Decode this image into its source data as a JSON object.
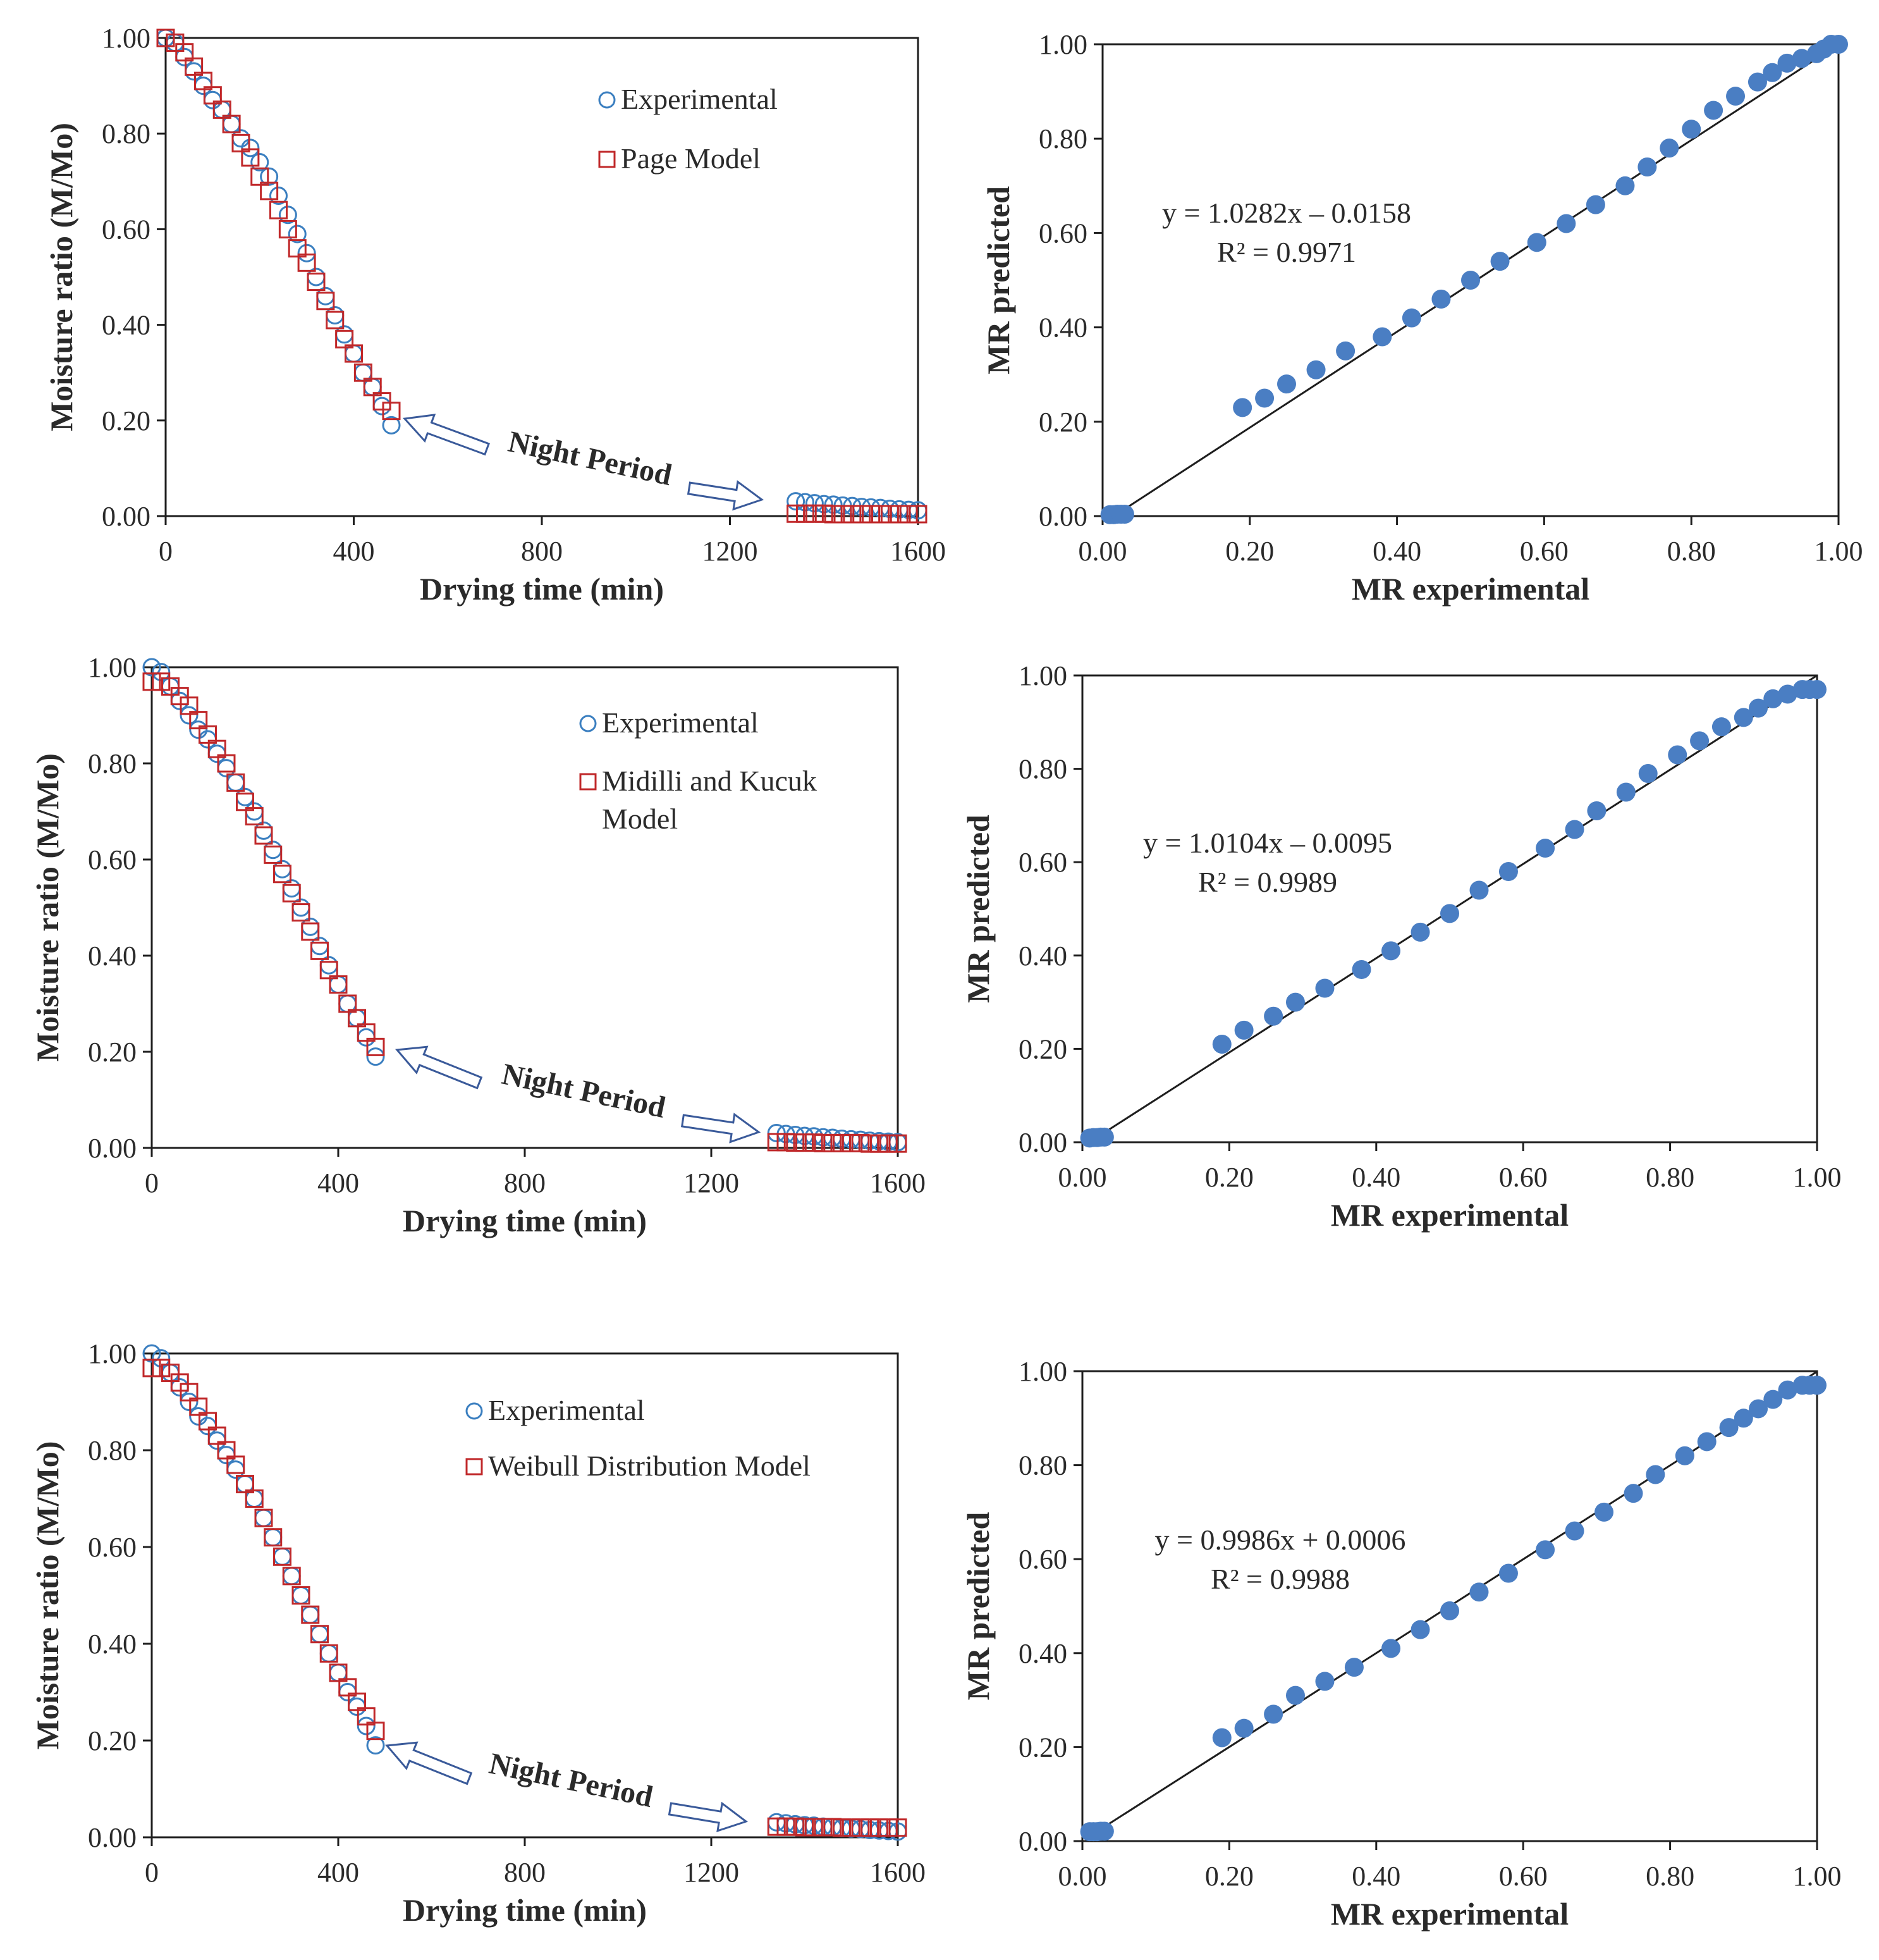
{
  "figure": {
    "night_arrow_fill": "#ffffff",
    "night_arrow_stroke": "#3a5a9a",
    "exp_color": "#3b7fc0",
    "model_color": "#c0282a",
    "scatter_color": "#4a7ec3",
    "axis_color": "#1e1e1e"
  },
  "chart_data": [
    {
      "id": "page-curve",
      "type": "scatter",
      "xlabel": "Drying time (min)",
      "ylabel": "Moisture ratio (M/Mo)",
      "xlim": [
        0,
        1600
      ],
      "ylim": [
        0,
        1.0
      ],
      "xticks": [
        "0",
        "400",
        "800",
        "1200",
        "1600"
      ],
      "yticks": [
        "0.00",
        "0.20",
        "0.40",
        "0.60",
        "0.80",
        "1.00"
      ],
      "annotation": "Night Period",
      "legend": [
        "Experimental",
        "Page Model"
      ],
      "series": [
        {
          "name": "Experimental",
          "marker": "circle-open",
          "x": [
            0,
            20,
            40,
            60,
            80,
            100,
            120,
            140,
            160,
            180,
            200,
            220,
            240,
            260,
            280,
            300,
            320,
            340,
            360,
            380,
            400,
            420,
            440,
            460,
            480,
            1340,
            1360,
            1380,
            1400,
            1420,
            1440,
            1460,
            1480,
            1500,
            1520,
            1540,
            1560,
            1580,
            1600
          ],
          "y": [
            1.0,
            0.99,
            0.96,
            0.93,
            0.9,
            0.87,
            0.85,
            0.82,
            0.79,
            0.77,
            0.74,
            0.71,
            0.67,
            0.63,
            0.59,
            0.55,
            0.5,
            0.46,
            0.42,
            0.38,
            0.34,
            0.3,
            0.27,
            0.23,
            0.19,
            0.031,
            0.029,
            0.027,
            0.025,
            0.024,
            0.022,
            0.021,
            0.019,
            0.018,
            0.017,
            0.015,
            0.014,
            0.013,
            0.012
          ]
        },
        {
          "name": "Page Model",
          "marker": "square-open",
          "x": [
            0,
            20,
            40,
            60,
            80,
            100,
            120,
            140,
            160,
            180,
            200,
            220,
            240,
            260,
            280,
            300,
            320,
            340,
            360,
            380,
            400,
            420,
            440,
            460,
            480,
            1340,
            1360,
            1380,
            1400,
            1420,
            1440,
            1460,
            1480,
            1500,
            1520,
            1540,
            1560,
            1580,
            1600
          ],
          "y": [
            1.0,
            0.99,
            0.97,
            0.94,
            0.91,
            0.88,
            0.85,
            0.82,
            0.78,
            0.75,
            0.71,
            0.68,
            0.64,
            0.6,
            0.56,
            0.53,
            0.49,
            0.45,
            0.41,
            0.37,
            0.34,
            0.3,
            0.27,
            0.24,
            0.22,
            0.005,
            0.005,
            0.005,
            0.005,
            0.004,
            0.004,
            0.004,
            0.004,
            0.004,
            0.004,
            0.004,
            0.004,
            0.004,
            0.004
          ]
        }
      ]
    },
    {
      "id": "page-fit",
      "type": "scatter",
      "xlabel": "MR experimental",
      "ylabel": "MR predicted",
      "xlim": [
        0,
        1.0
      ],
      "ylim": [
        0,
        1.0
      ],
      "xticks": [
        "0.00",
        "0.20",
        "0.40",
        "0.60",
        "0.80",
        "1.00"
      ],
      "yticks": [
        "0.00",
        "0.20",
        "0.40",
        "0.60",
        "0.80",
        "1.00"
      ],
      "equation": "y = 1.0282x – 0.0158",
      "r2": "R² = 0.9971",
      "trendline": {
        "slope": 1.0282,
        "intercept": -0.0158
      },
      "series": [
        {
          "name": "MR",
          "marker": "circle-filled",
          "x": [
            0.01,
            0.015,
            0.02,
            0.025,
            0.03,
            0.19,
            0.22,
            0.25,
            0.29,
            0.33,
            0.38,
            0.42,
            0.46,
            0.5,
            0.54,
            0.59,
            0.63,
            0.67,
            0.71,
            0.74,
            0.77,
            0.8,
            0.83,
            0.86,
            0.89,
            0.91,
            0.93,
            0.95,
            0.97,
            0.98,
            0.99,
            1.0
          ],
          "y": [
            0.003,
            0.003,
            0.004,
            0.004,
            0.004,
            0.23,
            0.25,
            0.28,
            0.31,
            0.35,
            0.38,
            0.42,
            0.46,
            0.5,
            0.54,
            0.58,
            0.62,
            0.66,
            0.7,
            0.74,
            0.78,
            0.82,
            0.86,
            0.89,
            0.92,
            0.94,
            0.96,
            0.97,
            0.98,
            0.99,
            1.0,
            1.0
          ]
        }
      ]
    },
    {
      "id": "midilli-curve",
      "type": "scatter",
      "xlabel": "Drying time (min)",
      "ylabel": "Moisture ratio (M/Mo)",
      "xlim": [
        0,
        1600
      ],
      "ylim": [
        0,
        1.0
      ],
      "xticks": [
        "0",
        "400",
        "800",
        "1200",
        "1600"
      ],
      "yticks": [
        "0.00",
        "0.20",
        "0.40",
        "0.60",
        "0.80",
        "1.00"
      ],
      "annotation": "Night Period",
      "legend": [
        "Experimental",
        "Midilli and Kucuk",
        "Model"
      ],
      "series": [
        {
          "name": "Experimental",
          "marker": "circle-open",
          "x": [
            0,
            20,
            40,
            60,
            80,
            100,
            120,
            140,
            160,
            180,
            200,
            220,
            240,
            260,
            280,
            300,
            320,
            340,
            360,
            380,
            400,
            420,
            440,
            460,
            480,
            1340,
            1360,
            1380,
            1400,
            1420,
            1440,
            1460,
            1480,
            1500,
            1520,
            1540,
            1560,
            1580,
            1600
          ],
          "y": [
            1.0,
            0.99,
            0.96,
            0.93,
            0.9,
            0.87,
            0.85,
            0.82,
            0.79,
            0.76,
            0.73,
            0.7,
            0.66,
            0.62,
            0.58,
            0.54,
            0.5,
            0.46,
            0.42,
            0.38,
            0.34,
            0.3,
            0.27,
            0.23,
            0.19,
            0.031,
            0.029,
            0.027,
            0.025,
            0.024,
            0.022,
            0.021,
            0.019,
            0.018,
            0.017,
            0.015,
            0.014,
            0.013,
            0.012
          ]
        },
        {
          "name": "Midilli and Kucuk Model",
          "marker": "square-open",
          "x": [
            0,
            20,
            40,
            60,
            80,
            100,
            120,
            140,
            160,
            180,
            200,
            220,
            240,
            260,
            280,
            300,
            320,
            340,
            360,
            380,
            400,
            420,
            440,
            460,
            480,
            1340,
            1360,
            1380,
            1400,
            1420,
            1440,
            1460,
            1480,
            1500,
            1520,
            1540,
            1560,
            1580,
            1600
          ],
          "y": [
            0.97,
            0.97,
            0.96,
            0.94,
            0.92,
            0.89,
            0.86,
            0.83,
            0.8,
            0.76,
            0.72,
            0.69,
            0.65,
            0.61,
            0.57,
            0.53,
            0.49,
            0.45,
            0.41,
            0.37,
            0.34,
            0.3,
            0.27,
            0.24,
            0.21,
            0.012,
            0.012,
            0.011,
            0.011,
            0.011,
            0.01,
            0.01,
            0.01,
            0.01,
            0.01,
            0.009,
            0.009,
            0.009,
            0.009
          ]
        }
      ]
    },
    {
      "id": "midilli-fit",
      "type": "scatter",
      "xlabel": "MR experimental",
      "ylabel": "MR predicted",
      "xlim": [
        0,
        1.0
      ],
      "ylim": [
        0,
        1.0
      ],
      "xticks": [
        "0.00",
        "0.20",
        "0.40",
        "0.60",
        "0.80",
        "1.00"
      ],
      "yticks": [
        "0.00",
        "0.20",
        "0.40",
        "0.60",
        "0.80",
        "1.00"
      ],
      "equation": "y = 1.0104x – 0.0095",
      "r2": "R² = 0.9989",
      "trendline": {
        "slope": 1.0104,
        "intercept": -0.0095
      },
      "series": [
        {
          "name": "MR",
          "marker": "circle-filled",
          "x": [
            0.01,
            0.015,
            0.02,
            0.025,
            0.03,
            0.19,
            0.22,
            0.26,
            0.29,
            0.33,
            0.38,
            0.42,
            0.46,
            0.5,
            0.54,
            0.58,
            0.63,
            0.67,
            0.7,
            0.74,
            0.77,
            0.81,
            0.84,
            0.87,
            0.9,
            0.92,
            0.94,
            0.96,
            0.98,
            0.99,
            1.0
          ],
          "y": [
            0.009,
            0.01,
            0.01,
            0.011,
            0.011,
            0.21,
            0.24,
            0.27,
            0.3,
            0.33,
            0.37,
            0.41,
            0.45,
            0.49,
            0.54,
            0.58,
            0.63,
            0.67,
            0.71,
            0.75,
            0.79,
            0.83,
            0.86,
            0.89,
            0.91,
            0.93,
            0.95,
            0.96,
            0.97,
            0.97,
            0.97
          ]
        }
      ]
    },
    {
      "id": "weibull-curve",
      "type": "scatter",
      "xlabel": "Drying time (min)",
      "ylabel": "Moisture ratio (M/Mo)",
      "xlim": [
        0,
        1600
      ],
      "ylim": [
        0,
        1.0
      ],
      "xticks": [
        "0",
        "400",
        "800",
        "1200",
        "1600"
      ],
      "yticks": [
        "0.00",
        "0.20",
        "0.40",
        "0.60",
        "0.80",
        "1.00"
      ],
      "annotation": "Night Period",
      "legend": [
        "Experimental",
        "Weibull Distribution Model"
      ],
      "series": [
        {
          "name": "Experimental",
          "marker": "circle-open",
          "x": [
            0,
            20,
            40,
            60,
            80,
            100,
            120,
            140,
            160,
            180,
            200,
            220,
            240,
            260,
            280,
            300,
            320,
            340,
            360,
            380,
            400,
            420,
            440,
            460,
            480,
            1340,
            1360,
            1380,
            1400,
            1420,
            1440,
            1460,
            1480,
            1500,
            1520,
            1540,
            1560,
            1580,
            1600
          ],
          "y": [
            1.0,
            0.99,
            0.96,
            0.93,
            0.9,
            0.87,
            0.85,
            0.82,
            0.79,
            0.76,
            0.73,
            0.7,
            0.66,
            0.62,
            0.58,
            0.54,
            0.5,
            0.46,
            0.42,
            0.38,
            0.34,
            0.3,
            0.27,
            0.23,
            0.19,
            0.031,
            0.029,
            0.027,
            0.025,
            0.024,
            0.022,
            0.021,
            0.019,
            0.018,
            0.017,
            0.015,
            0.014,
            0.013,
            0.012
          ]
        },
        {
          "name": "Weibull Distribution Model",
          "marker": "square-open",
          "x": [
            0,
            20,
            40,
            60,
            80,
            100,
            120,
            140,
            160,
            180,
            200,
            220,
            240,
            260,
            280,
            300,
            320,
            340,
            360,
            380,
            400,
            420,
            440,
            460,
            480,
            1340,
            1360,
            1380,
            1400,
            1420,
            1440,
            1460,
            1480,
            1500,
            1520,
            1540,
            1560,
            1580,
            1600
          ],
          "y": [
            0.97,
            0.97,
            0.96,
            0.94,
            0.92,
            0.89,
            0.86,
            0.83,
            0.8,
            0.77,
            0.73,
            0.7,
            0.66,
            0.62,
            0.58,
            0.54,
            0.5,
            0.46,
            0.42,
            0.38,
            0.34,
            0.31,
            0.28,
            0.25,
            0.22,
            0.022,
            0.022,
            0.022,
            0.021,
            0.021,
            0.021,
            0.021,
            0.02,
            0.02,
            0.02,
            0.02,
            0.02,
            0.02,
            0.02
          ]
        }
      ]
    },
    {
      "id": "weibull-fit",
      "type": "scatter",
      "xlabel": "MR experimental",
      "ylabel": "MR predicted",
      "xlim": [
        0,
        1.0
      ],
      "ylim": [
        0,
        1.0
      ],
      "xticks": [
        "0.00",
        "0.20",
        "0.40",
        "0.60",
        "0.80",
        "1.00"
      ],
      "yticks": [
        "0.00",
        "0.20",
        "0.40",
        "0.60",
        "0.80",
        "1.00"
      ],
      "equation": "y = 0.9986x + 0.0006",
      "r2": "R² = 0.9988",
      "trendline": {
        "slope": 0.9986,
        "intercept": 0.0006
      },
      "series": [
        {
          "name": "MR",
          "marker": "circle-filled",
          "x": [
            0.01,
            0.015,
            0.02,
            0.025,
            0.03,
            0.19,
            0.22,
            0.26,
            0.29,
            0.33,
            0.37,
            0.42,
            0.46,
            0.5,
            0.54,
            0.58,
            0.63,
            0.67,
            0.71,
            0.75,
            0.78,
            0.82,
            0.85,
            0.88,
            0.9,
            0.92,
            0.94,
            0.96,
            0.98,
            0.99,
            1.0
          ],
          "y": [
            0.02,
            0.02,
            0.02,
            0.021,
            0.021,
            0.22,
            0.24,
            0.27,
            0.31,
            0.34,
            0.37,
            0.41,
            0.45,
            0.49,
            0.53,
            0.57,
            0.62,
            0.66,
            0.7,
            0.74,
            0.78,
            0.82,
            0.85,
            0.88,
            0.9,
            0.92,
            0.94,
            0.96,
            0.97,
            0.97,
            0.97
          ]
        }
      ]
    }
  ]
}
